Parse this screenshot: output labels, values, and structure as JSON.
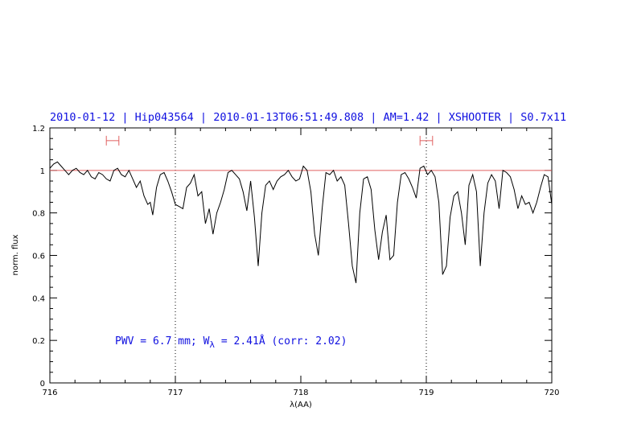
{
  "chart_data": {
    "type": "line",
    "title": "2010-01-12 | Hip043564 | 2010-01-13T06:51:49.808 | AM=1.42 | XSHOOTER | S0.7x11",
    "xlabel": "λ(AA)",
    "ylabel": "norm. flux",
    "xlim": [
      716,
      720
    ],
    "ylim": [
      0,
      1.2
    ],
    "x_ticks": [
      "716",
      "717",
      "718",
      "719",
      "720"
    ],
    "y_ticks": [
      "0",
      "0.2",
      "0.4",
      "0.6",
      "0.8",
      "1",
      "1.2"
    ],
    "reference_line": {
      "y": 1.0,
      "color": "#e06060"
    },
    "vertical_markers": [
      717.0,
      719.0
    ],
    "ranges": [
      {
        "from": 716.45,
        "to": 716.55,
        "y": 1.14
      },
      {
        "from": 718.95,
        "to": 719.05,
        "y": 1.14
      }
    ],
    "annotation": {
      "prefix": "PWV = 6.7 mm; W",
      "subscript": "λ",
      "suffix": " = 2.41Å (corr: 2.02)"
    },
    "series": [
      {
        "color": "#000000",
        "x": [
          716.0,
          716.03,
          716.06,
          716.09,
          716.12,
          716.15,
          716.18,
          716.21,
          716.24,
          716.27,
          716.3,
          716.33,
          716.36,
          716.39,
          716.42,
          716.45,
          716.48,
          716.51,
          716.54,
          716.57,
          716.6,
          716.63,
          716.66,
          716.69,
          716.72,
          716.75,
          716.78,
          716.8,
          716.82,
          716.85,
          716.88,
          716.91,
          716.94,
          716.97,
          717.0,
          717.03,
          717.06,
          717.09,
          717.12,
          717.15,
          717.18,
          717.21,
          717.24,
          717.27,
          717.3,
          717.33,
          717.36,
          717.39,
          717.42,
          717.45,
          717.48,
          717.51,
          717.54,
          717.57,
          717.6,
          717.63,
          717.66,
          717.69,
          717.72,
          717.75,
          717.78,
          717.81,
          717.84,
          717.87,
          717.9,
          717.93,
          717.96,
          717.99,
          718.02,
          718.05,
          718.08,
          718.11,
          718.14,
          718.17,
          718.2,
          718.23,
          718.26,
          718.29,
          718.32,
          718.35,
          718.38,
          718.41,
          718.44,
          718.47,
          718.5,
          718.53,
          718.56,
          718.59,
          718.62,
          718.65,
          718.68,
          718.71,
          718.74,
          718.77,
          718.8,
          718.83,
          718.86,
          718.89,
          718.92,
          718.95,
          718.98,
          719.01,
          719.04,
          719.07,
          719.1,
          719.13,
          719.16,
          719.19,
          719.22,
          719.25,
          719.28,
          719.31,
          719.34,
          719.37,
          719.4,
          719.43,
          719.46,
          719.49,
          719.52,
          719.55,
          719.58,
          719.61,
          719.64,
          719.67,
          719.7,
          719.73,
          719.76,
          719.79,
          719.82,
          719.85,
          719.88,
          719.91,
          719.94,
          719.97,
          720.0
        ],
        "y": [
          1.01,
          1.03,
          1.04,
          1.02,
          1.0,
          0.98,
          1.0,
          1.01,
          0.99,
          0.98,
          1.0,
          0.97,
          0.96,
          0.99,
          0.98,
          0.96,
          0.95,
          1.0,
          1.01,
          0.98,
          0.97,
          1.0,
          0.96,
          0.92,
          0.95,
          0.88,
          0.84,
          0.85,
          0.79,
          0.92,
          0.98,
          0.99,
          0.95,
          0.9,
          0.84,
          0.83,
          0.82,
          0.92,
          0.94,
          0.98,
          0.88,
          0.9,
          0.75,
          0.82,
          0.7,
          0.8,
          0.85,
          0.91,
          0.99,
          1.0,
          0.98,
          0.96,
          0.9,
          0.81,
          0.95,
          0.78,
          0.55,
          0.8,
          0.93,
          0.95,
          0.91,
          0.95,
          0.97,
          0.98,
          1.0,
          0.97,
          0.95,
          0.96,
          1.02,
          1.0,
          0.9,
          0.7,
          0.6,
          0.82,
          0.99,
          0.98,
          1.0,
          0.95,
          0.97,
          0.93,
          0.75,
          0.55,
          0.47,
          0.8,
          0.96,
          0.97,
          0.91,
          0.72,
          0.58,
          0.71,
          0.79,
          0.58,
          0.6,
          0.85,
          0.98,
          0.99,
          0.96,
          0.92,
          0.87,
          1.01,
          1.02,
          0.98,
          1.0,
          0.97,
          0.85,
          0.51,
          0.55,
          0.78,
          0.88,
          0.9,
          0.8,
          0.65,
          0.93,
          0.98,
          0.9,
          0.55,
          0.8,
          0.94,
          0.98,
          0.95,
          0.82,
          1.0,
          0.99,
          0.97,
          0.91,
          0.82,
          0.88,
          0.84,
          0.85,
          0.8,
          0.85,
          0.92,
          0.98,
          0.97,
          0.84
        ]
      }
    ]
  }
}
